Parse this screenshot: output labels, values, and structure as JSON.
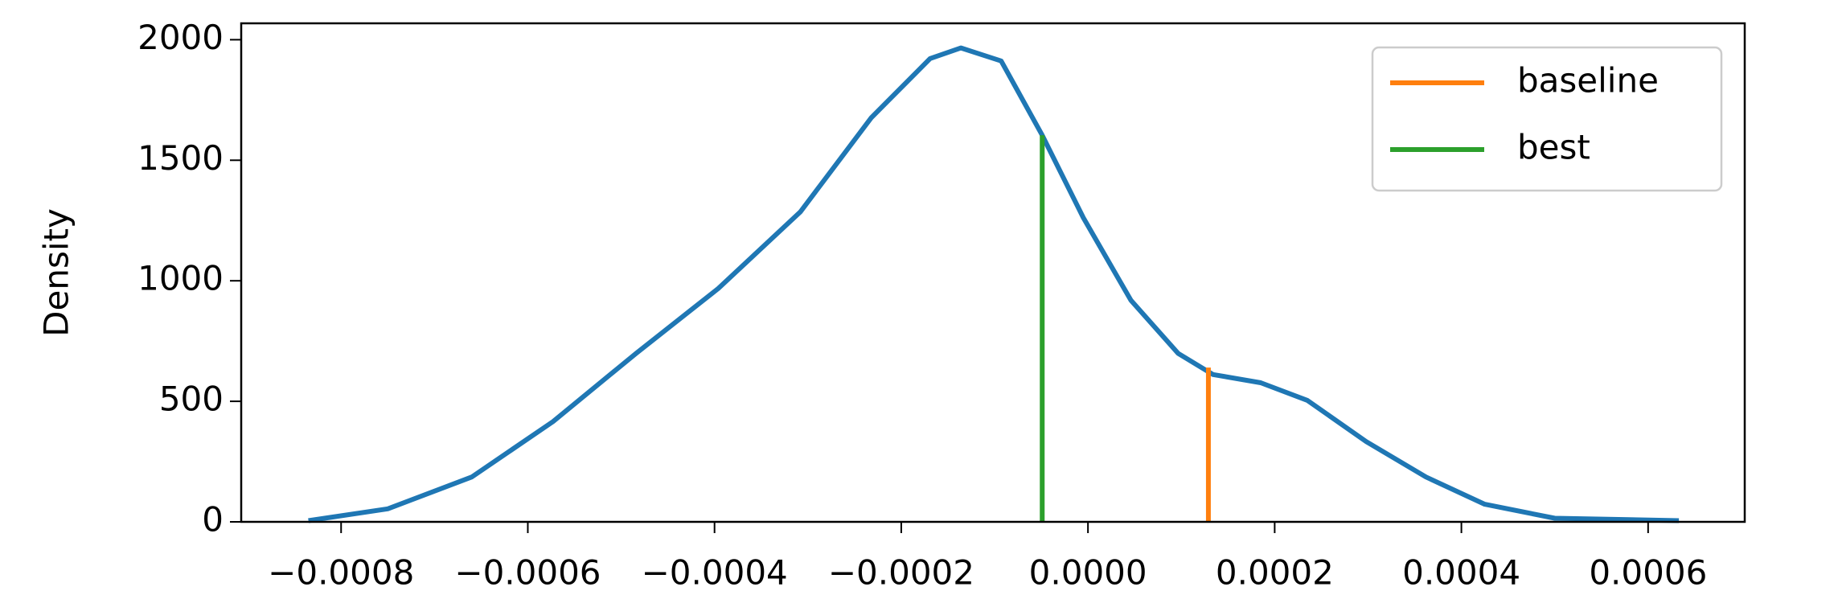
{
  "chart_data": {
    "type": "line",
    "ylabel": "Density",
    "xlim": [
      -0.000907,
      0.0007035
    ],
    "ylim": [
      0,
      2068
    ],
    "xticks": [
      {
        "value": -0.0008,
        "label": "−0.0008"
      },
      {
        "value": -0.0006,
        "label": "−0.0006"
      },
      {
        "value": -0.0004,
        "label": "−0.0004"
      },
      {
        "value": -0.0002,
        "label": "−0.0002"
      },
      {
        "value": 0,
        "label": "0.0000"
      },
      {
        "value": 0.0002,
        "label": "0.0002"
      },
      {
        "value": 0.0004,
        "label": "0.0004"
      },
      {
        "value": 0.0006,
        "label": "0.0006"
      }
    ],
    "yticks": [
      0,
      500,
      1000,
      1500,
      2000
    ],
    "series": [
      {
        "color": "#1f77b4",
        "x": [
          -0.000835,
          -0.00075,
          -0.00066,
          -0.000573,
          -0.000484,
          -0.000396,
          -0.000308,
          -0.000232,
          -0.000169,
          -0.000136,
          -9.3e-05,
          -4.9e-05,
          -5e-06,
          4.6e-05,
          9.65e-05,
          0.000134,
          0.000185,
          0.000235,
          0.000298,
          0.000362,
          0.000425,
          0.0005,
          0.000633
        ],
        "values": [
          5,
          54,
          186,
          416,
          699,
          968,
          1286,
          1677,
          1922,
          1966,
          1912,
          1604,
          1262,
          919,
          699,
          611,
          577,
          504,
          333,
          186,
          73,
          15,
          5
        ]
      }
    ],
    "vlines": [
      {
        "name": "baseline",
        "color": "#ff7f0e",
        "x": 0.000129,
        "height": 640
      },
      {
        "name": "best",
        "color": "#2ca02c",
        "x": -4.9e-05,
        "height": 1604
      }
    ],
    "legend": "upper right"
  }
}
